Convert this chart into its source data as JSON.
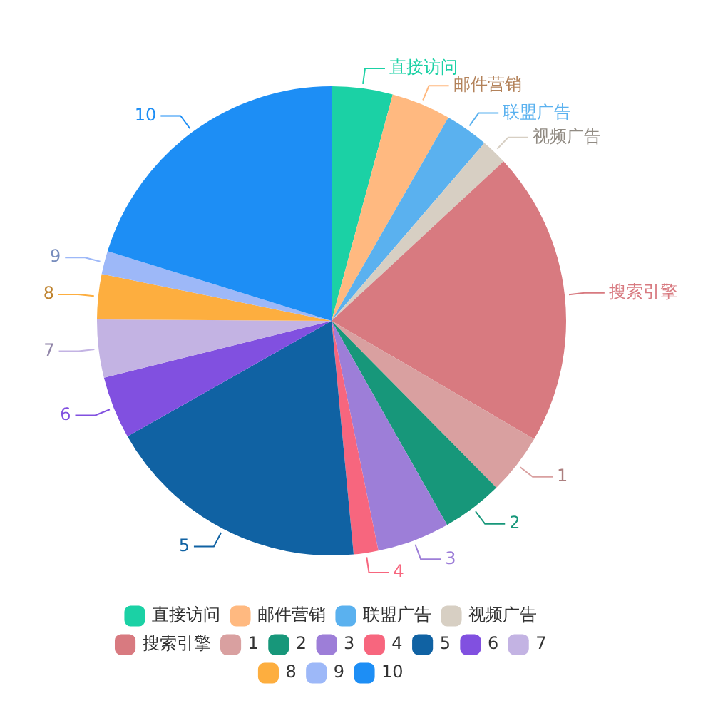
{
  "chart_data": {
    "type": "pie",
    "categories": [
      "直接访问",
      "邮件营销",
      "联盟广告",
      "视频广告",
      "搜索引擎",
      "1",
      "2",
      "3",
      "4",
      "5",
      "6",
      "7",
      "8",
      "9",
      "10"
    ],
    "values": [
      4.2,
      4.1,
      3.0,
      1.8,
      20.3,
      4.2,
      4.2,
      5.0,
      1.7,
      18.3,
      4.3,
      4.0,
      3.1,
      1.6,
      20.2
    ],
    "colors": [
      "#1bd1a5",
      "#ffb980",
      "#5ab1ef",
      "#d7cfc3",
      "#d87a80",
      "#d9a0a0",
      "#17977a",
      "#9d7ed8",
      "#f7667e",
      "#1062a3",
      "#8150e0",
      "#c3b3e3",
      "#fdae3f",
      "#9db8f8",
      "#1d8ef5"
    ],
    "legend": "bottom"
  }
}
